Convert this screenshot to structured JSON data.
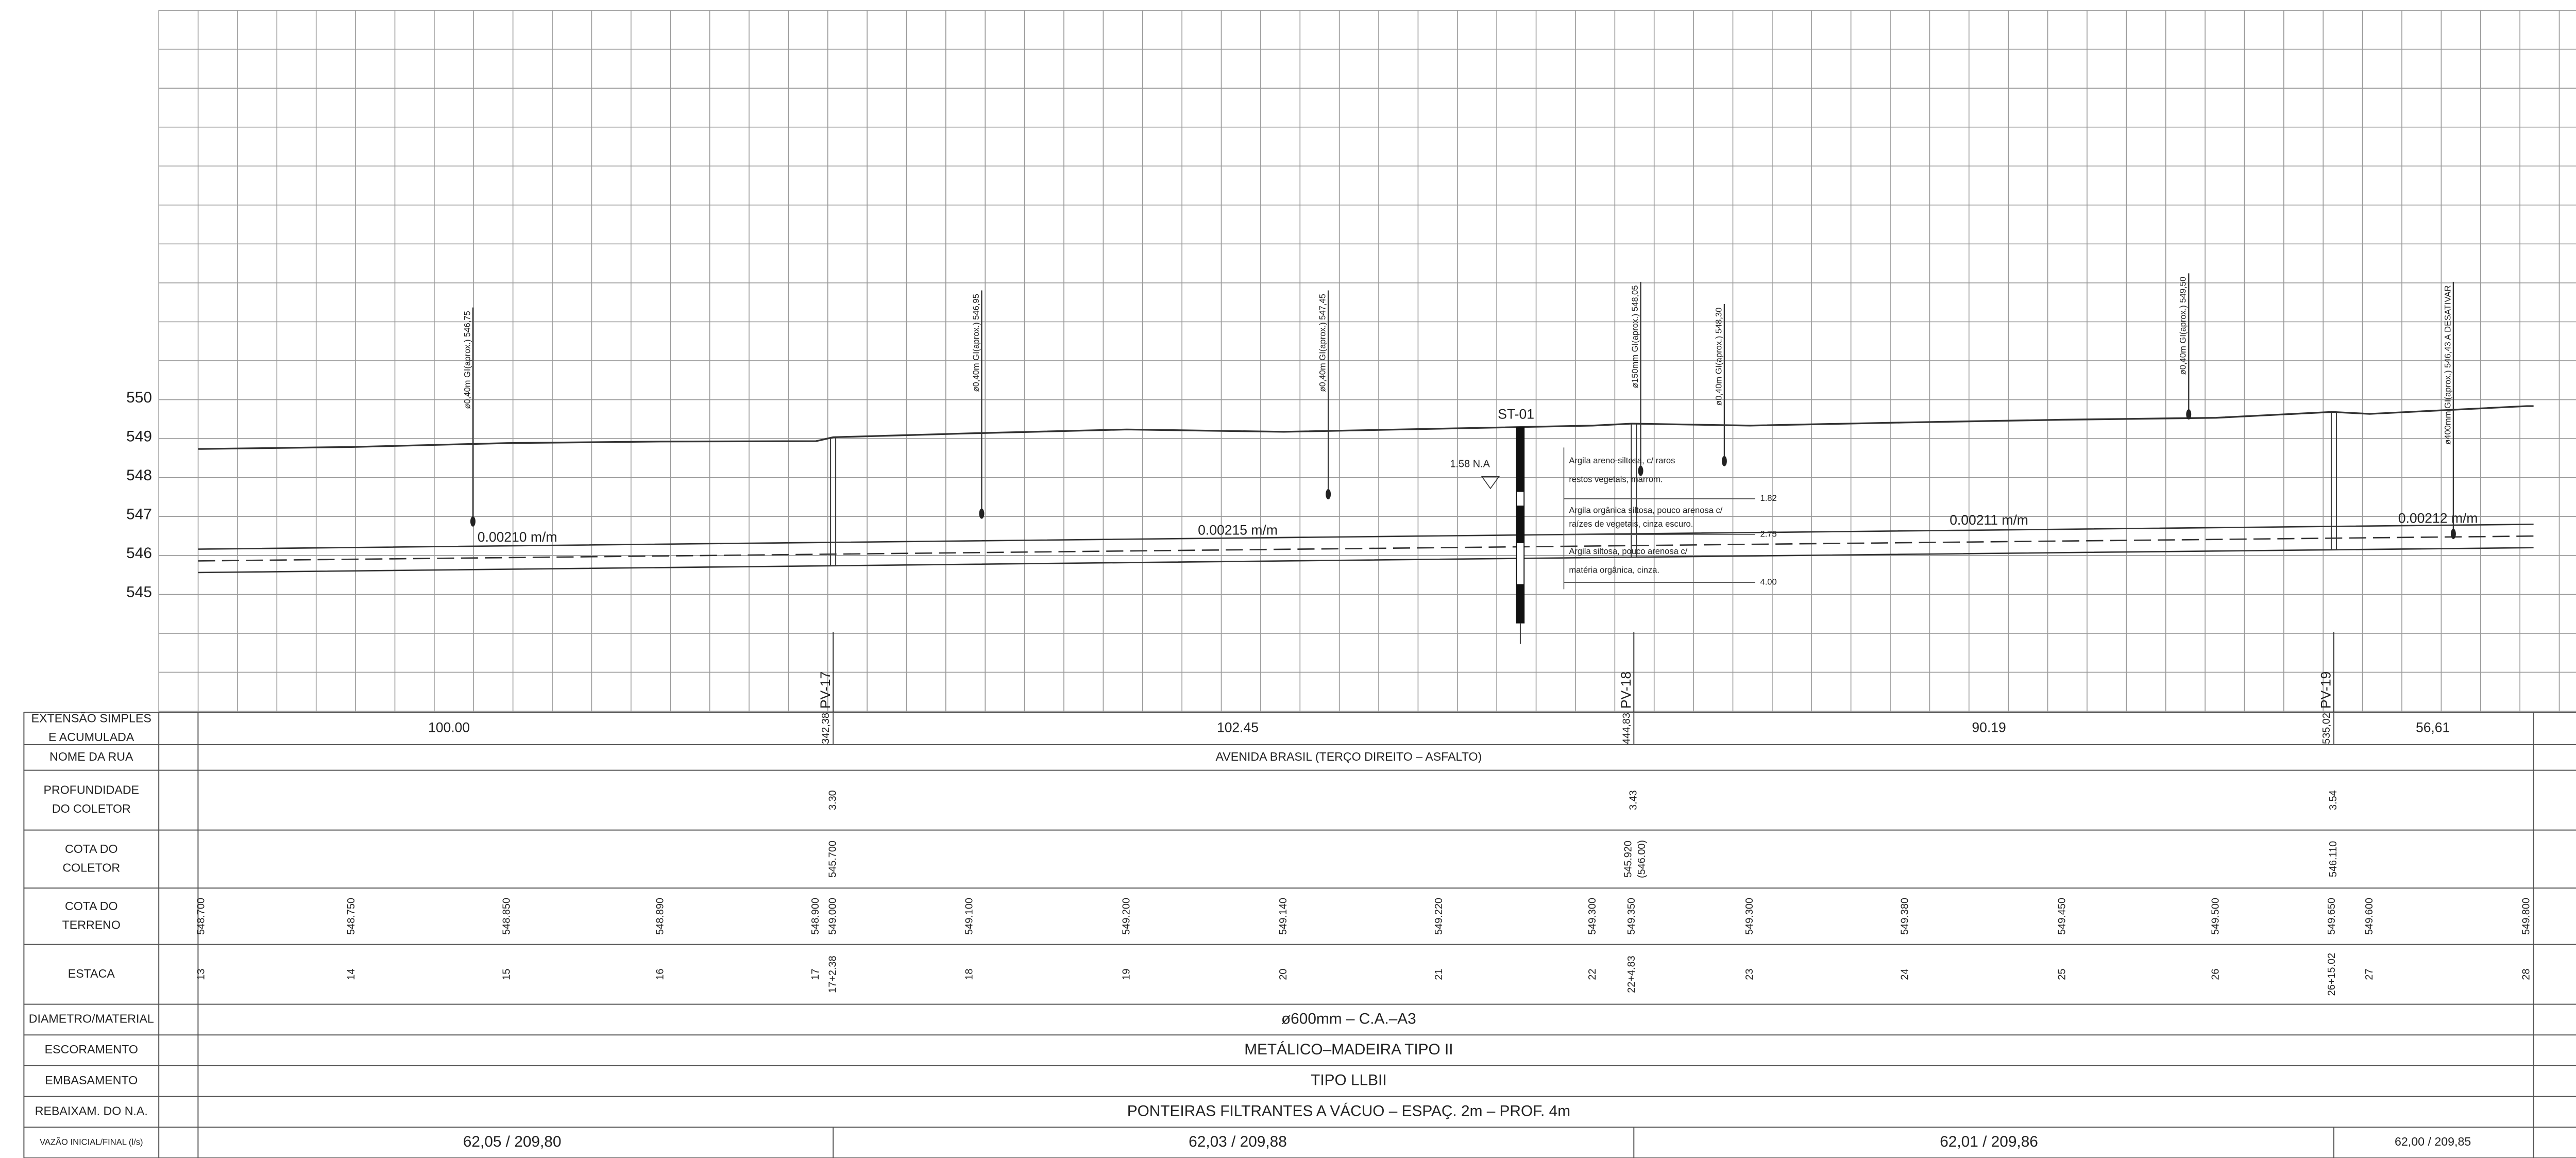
{
  "elevation_ticks": [
    550,
    549,
    548,
    547,
    546,
    545
  ],
  "grades": [
    "0.00210 m/m",
    "0.00215 m/m",
    "0.00211 m/m",
    "0.00212 m/m"
  ],
  "manholes": [
    "PV-17",
    "PV-18",
    "PV-19"
  ],
  "interferences": [
    {
      "text": "ø0,40m GI(aprox.) 546,75",
      "elevation": 546.75
    },
    {
      "text": "ø0,40m GI(aprox.) 546,95",
      "elevation": 546.95
    },
    {
      "text": "ø0,40m GI(aprox.) 547,45",
      "elevation": 547.45
    },
    {
      "text": "ø150mm GI(aprox.) 548,05",
      "elevation": 548.05
    },
    {
      "text": "ø0,40m GI(aprox.) 548,30",
      "elevation": 548.3
    },
    {
      "text": "ø0,40m GI(aprox.) 549,50",
      "elevation": 549.5
    },
    {
      "text": "ø400mm GI(aprox.) 546,43 A DESATIVAR",
      "elevation": 546.43
    }
  ],
  "borehole": {
    "name": "ST-01",
    "water_level": "1.58 N.A",
    "layers": [
      [
        "Argila areno-siltosa, c/ raros",
        "restos vegetais, marrom."
      ],
      [
        "Argila orgânica siltosa, pouco arenosa c/",
        "raízes de vegetais, cinza escuro."
      ],
      [
        "Argila siltosa, pouco arenosa c/",
        "matéria orgânica, cinza."
      ]
    ],
    "depths": [
      "1.82",
      "2.75",
      "4.00"
    ]
  },
  "table": {
    "row_headers": [
      [
        "EXTENSÃO SIMPLES",
        "E ACUMULADA"
      ],
      [
        "NOME DA RUA"
      ],
      [
        "PROFUNDIDADE",
        "DO COLETOR"
      ],
      [
        "COTA DO",
        "COLETOR"
      ],
      [
        "COTA DO",
        "TERRENO"
      ],
      [
        "ESTACA"
      ],
      [
        "DIAMETRO/MATERIAL"
      ],
      [
        "ESCORAMENTO"
      ],
      [
        "EMBASAMENTO"
      ],
      [
        "REBAIXAM. DO N.A."
      ],
      [
        "VAZÃO INICIAL/FINAL (l/s)"
      ]
    ],
    "extension": [
      "100.00",
      "102.45",
      "90.19",
      "56,61"
    ],
    "accumulated": [
      "342,38",
      "444,83",
      "535,02"
    ],
    "street": "AVENIDA BRASIL (TERÇO DIREITO – ASFALTO)",
    "depth": [
      "3.30",
      "3.43",
      "3.54"
    ],
    "collector_elevation": [
      "545.700",
      "545.920",
      "546.110"
    ],
    "collector_note": "(546.00)",
    "terrain": [
      {
        "station": "13",
        "elevation": "548.700"
      },
      {
        "station": "14",
        "elevation": "548.750"
      },
      {
        "station": "15",
        "elevation": "548.850"
      },
      {
        "station": "16",
        "elevation": "548.890"
      },
      {
        "station": "17",
        "elevation": "548.900"
      },
      {
        "station": "17+2.38",
        "elevation": "549.000"
      },
      {
        "station": "18",
        "elevation": "549.100"
      },
      {
        "station": "19",
        "elevation": "549.200"
      },
      {
        "station": "20",
        "elevation": "549.140"
      },
      {
        "station": "21",
        "elevation": "549.220"
      },
      {
        "station": "22",
        "elevation": "549.300"
      },
      {
        "station": "22+4.83",
        "elevation": "549.350"
      },
      {
        "station": "23",
        "elevation": "549.300"
      },
      {
        "station": "24",
        "elevation": "549.380"
      },
      {
        "station": "25",
        "elevation": "549.450"
      },
      {
        "station": "26",
        "elevation": "549.500"
      },
      {
        "station": "26+15.02",
        "elevation": "549.650"
      },
      {
        "station": "27",
        "elevation": "549.600"
      },
      {
        "station": "28",
        "elevation": "549.800"
      }
    ],
    "diameter": "ø600mm – C.A.–A3",
    "shoring": "METÁLICO–MADEIRA TIPO II",
    "bedding": "TIPO LLBII",
    "dewatering": "PONTEIRAS FILTRANTES A VÁCUO – ESPAÇ. 2m – PROF. 4m",
    "flow": [
      "62,05 / 209,80",
      "62,03 / 209,88",
      "62,01 / 209,86",
      "62,00 / 209,85"
    ]
  }
}
